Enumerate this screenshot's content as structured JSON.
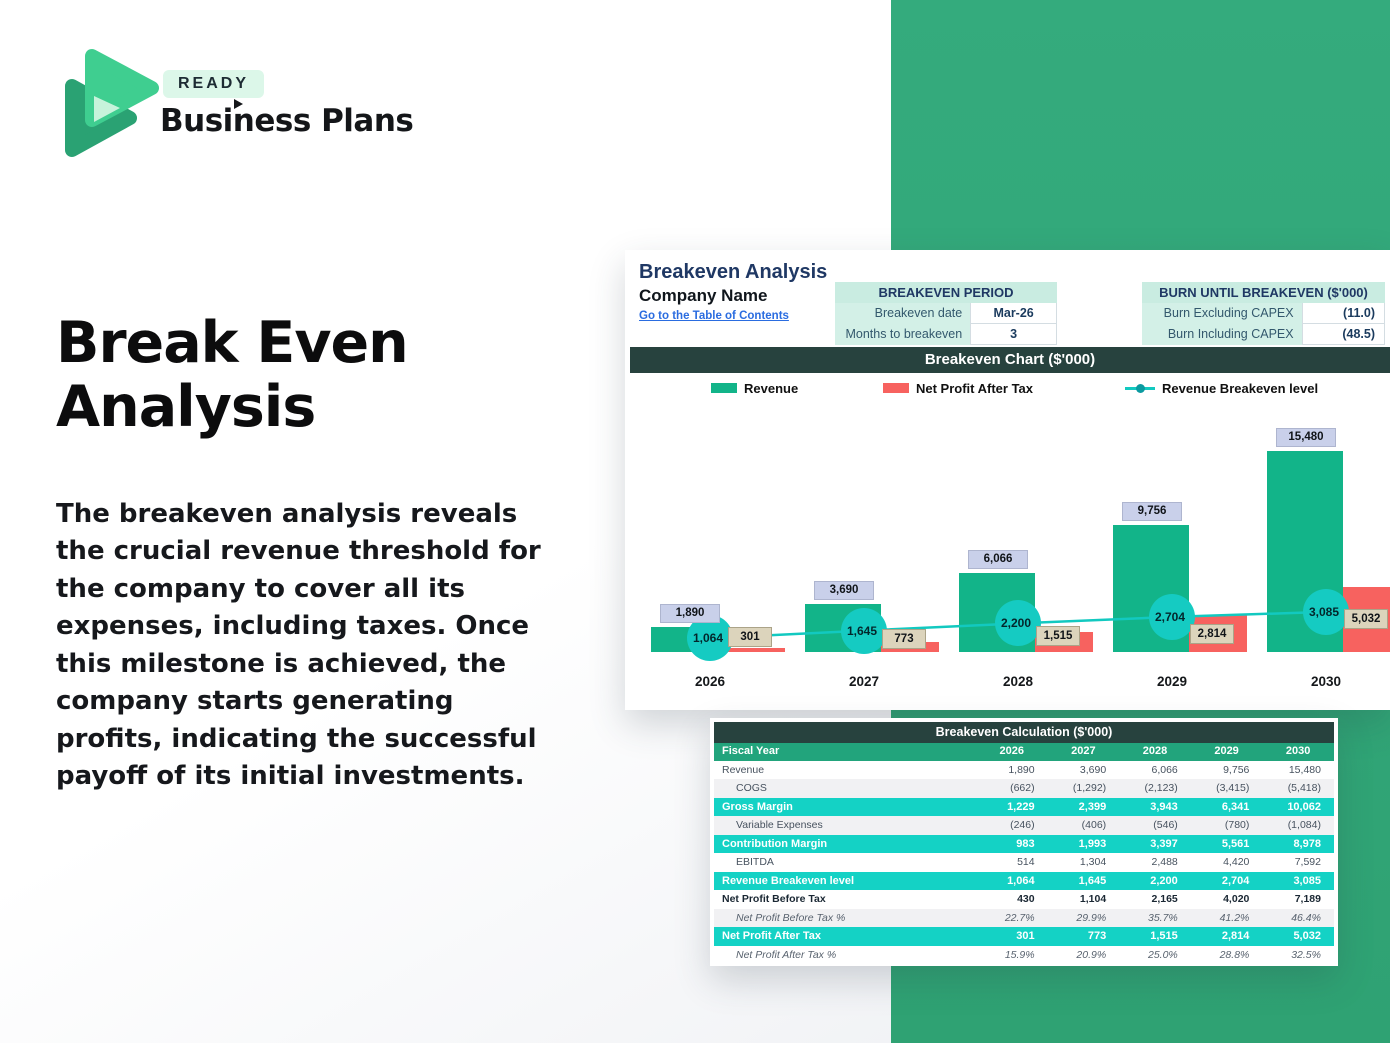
{
  "brand": {
    "badge": "READY",
    "name": "Business Plans"
  },
  "hero": {
    "title": "Break Even Analysis",
    "paragraph": "The breakeven analysis reveals the crucial revenue threshold for the company to cover all its expenses, including taxes. Once this milestone is achieved, the company starts generating profits, indicating the successful payoff of its initial investments."
  },
  "sheet": {
    "title": "Breakeven Analysis",
    "company": "Company Name",
    "toc_link": "Go to the Table of Contents",
    "period": {
      "header": "BREAKEVEN PERIOD",
      "rows": [
        [
          "Breakeven date",
          "Mar-26"
        ],
        [
          "Months to breakeven",
          "3"
        ]
      ]
    },
    "burn": {
      "header": "BURN UNTIL BREAKEVEN ($'000)",
      "rows": [
        [
          "Burn Excluding CAPEX",
          "(11.0)"
        ],
        [
          "Burn Including CAPEX",
          "(48.5)"
        ]
      ]
    }
  },
  "chart_data": {
    "type": "bar",
    "title": "Breakeven Chart ($'000)",
    "categories": [
      "2026",
      "2027",
      "2028",
      "2029",
      "2030"
    ],
    "series": [
      {
        "name": "Revenue",
        "type": "bar",
        "values": [
          1890,
          3690,
          6066,
          9756,
          15480
        ],
        "labels": [
          "1,890",
          "3,690",
          "6,066",
          "9,756",
          "15,480"
        ]
      },
      {
        "name": "Net Profit After Tax",
        "type": "bar",
        "values": [
          301,
          773,
          1515,
          2814,
          5032
        ],
        "labels": [
          "301",
          "773",
          "1,515",
          "2,814",
          "5,032"
        ]
      },
      {
        "name": "Revenue Breakeven level",
        "type": "line",
        "values": [
          1064,
          1645,
          2200,
          2704,
          3085
        ],
        "labels": [
          "1,064",
          "1,645",
          "2,200",
          "2,704",
          "3,085"
        ]
      }
    ],
    "ylim": [
      0,
      16000
    ],
    "legend_position": "top",
    "axes_hidden": true
  },
  "table": {
    "title": "Breakeven Calculation ($'000)",
    "header": [
      "Fiscal Year",
      "2026",
      "2027",
      "2028",
      "2029",
      "2030"
    ],
    "rows": [
      {
        "label": "Revenue",
        "style": "plain",
        "values": [
          "1,890",
          "3,690",
          "6,066",
          "9,756",
          "15,480"
        ]
      },
      {
        "label": "COGS",
        "style": "sub",
        "values": [
          "(662)",
          "(1,292)",
          "(2,123)",
          "(3,415)",
          "(5,418)"
        ]
      },
      {
        "label": "Gross Margin",
        "style": "teal",
        "values": [
          "1,229",
          "2,399",
          "3,943",
          "6,341",
          "10,062"
        ]
      },
      {
        "label": "Variable Expenses",
        "style": "sub",
        "values": [
          "(246)",
          "(406)",
          "(546)",
          "(780)",
          "(1,084)"
        ]
      },
      {
        "label": "Contribution Margin",
        "style": "teal",
        "values": [
          "983",
          "1,993",
          "3,397",
          "5,561",
          "8,978"
        ]
      },
      {
        "label": "EBITDA",
        "style": "subw",
        "values": [
          "514",
          "1,304",
          "2,488",
          "4,420",
          "7,592"
        ]
      },
      {
        "label": "Revenue Breakeven level",
        "style": "teal",
        "values": [
          "1,064",
          "1,645",
          "2,200",
          "2,704",
          "3,085"
        ]
      },
      {
        "label": "Net Profit Before Tax",
        "style": "bold",
        "values": [
          "430",
          "1,104",
          "2,165",
          "4,020",
          "7,189"
        ]
      },
      {
        "label": "Net Profit Before Tax %",
        "style": "pct",
        "values": [
          "22.7%",
          "29.9%",
          "35.7%",
          "41.2%",
          "46.4%"
        ]
      },
      {
        "label": "Net Profit After Tax",
        "style": "teal",
        "values": [
          "301",
          "773",
          "1,515",
          "2,814",
          "5,032"
        ]
      },
      {
        "label": "Net Profit After Tax %",
        "style": "pctw",
        "values": [
          "15.9%",
          "20.9%",
          "25.0%",
          "28.8%",
          "32.5%"
        ]
      }
    ]
  },
  "colors": {
    "brand_green": "#31a87a",
    "bar_green": "#12b489",
    "bar_red": "#f7625f",
    "line_teal": "#12c9c0",
    "dark_header": "#27423e",
    "mint": "#c9ece1",
    "navy": "#1f3864",
    "table_green": "#22a47c",
    "table_teal": "#14d2c5",
    "label_lavender": "#c9d0ea",
    "label_tan": "#dcd4bc",
    "link_blue": "#2a6ce0"
  }
}
